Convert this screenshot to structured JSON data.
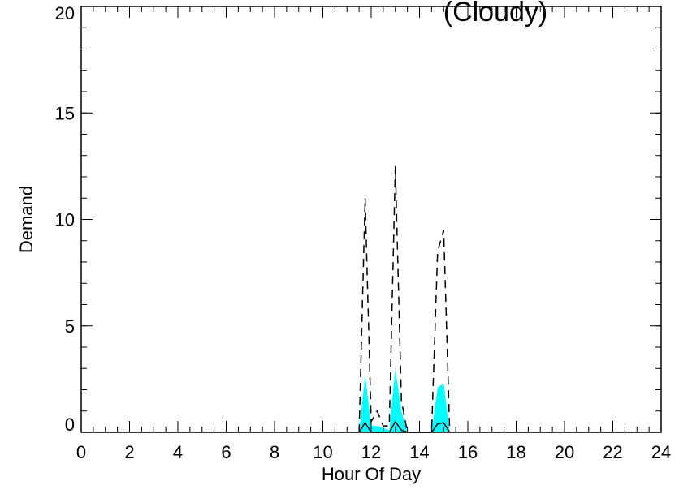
{
  "chart_data": {
    "type": "line",
    "title": "(Cloudy)",
    "xlabel": "Hour Of Day",
    "ylabel": "Demand",
    "xlim": [
      0,
      24
    ],
    "ylim": [
      0,
      20
    ],
    "x_ticks": [
      0,
      2,
      4,
      6,
      8,
      10,
      12,
      14,
      16,
      18,
      20,
      22,
      24
    ],
    "y_ticks": [
      0,
      5,
      10,
      15,
      20
    ],
    "x_minor_step": 0.5,
    "y_minor_step": 1,
    "grid": false,
    "band_color": "#00ffff",
    "line_color": "#000000",
    "series": [
      {
        "style": "band",
        "x": [
          11.5,
          11.75,
          12.0,
          12.25,
          12.5,
          12.75,
          13.0,
          13.25,
          13.5,
          14.5,
          14.75,
          15.0,
          15.25
        ],
        "lower": [
          0,
          0,
          0,
          0,
          0,
          0,
          0,
          0,
          0,
          0,
          0,
          0,
          0
        ],
        "upper": [
          0,
          2.7,
          0.3,
          0.3,
          0.2,
          0.1,
          3.0,
          1.0,
          0,
          0,
          2.1,
          2.3,
          0
        ]
      },
      {
        "style": "solid",
        "x": [
          11.5,
          11.75,
          12.0,
          12.5,
          12.75,
          13.0,
          13.25,
          13.5,
          14.5,
          14.75,
          15.0,
          15.25
        ],
        "y": [
          0,
          0.45,
          0,
          0,
          0,
          0.5,
          0.1,
          0,
          0,
          0.4,
          0.45,
          0
        ]
      },
      {
        "style": "dashed",
        "x": [
          11.5,
          11.75,
          12.0,
          12.25,
          12.5,
          12.75,
          13.0,
          13.25,
          13.5,
          14.5,
          14.75,
          15.0,
          15.25
        ],
        "y": [
          0,
          11.0,
          0.5,
          1.0,
          0.3,
          0.3,
          12.5,
          1.5,
          0,
          0,
          8.5,
          9.5,
          0
        ]
      }
    ]
  }
}
